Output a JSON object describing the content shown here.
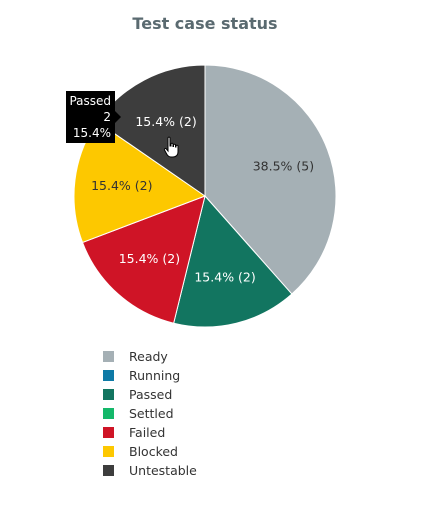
{
  "chart_data": {
    "type": "pie",
    "title": "Test case status",
    "slices": [
      {
        "label": "Ready",
        "value": 5,
        "percent_label": "38.5% (5)",
        "color": "#a5b0b5"
      },
      {
        "label": "Running",
        "value": 0,
        "percent_label": "",
        "color": "#0e7aa6"
      },
      {
        "label": "Passed",
        "value": 2,
        "percent_label": "15.4% (2)",
        "color": "#127560"
      },
      {
        "label": "Settled",
        "value": 0,
        "percent_label": "",
        "color": "#14b86a"
      },
      {
        "label": "Failed",
        "value": 2,
        "percent_label": "15.4% (2)",
        "color": "#cf1426"
      },
      {
        "label": "Blocked",
        "value": 2,
        "percent_label": "15.4% (2)",
        "color": "#fdc800"
      },
      {
        "label": "Untestable",
        "value": 2,
        "percent_label": "15.4% (2)",
        "color": "#3d3d3d"
      }
    ],
    "legend_position": "bottom-left"
  },
  "tooltip": {
    "label": "Passed",
    "count": "2",
    "percent": "15.4%"
  }
}
